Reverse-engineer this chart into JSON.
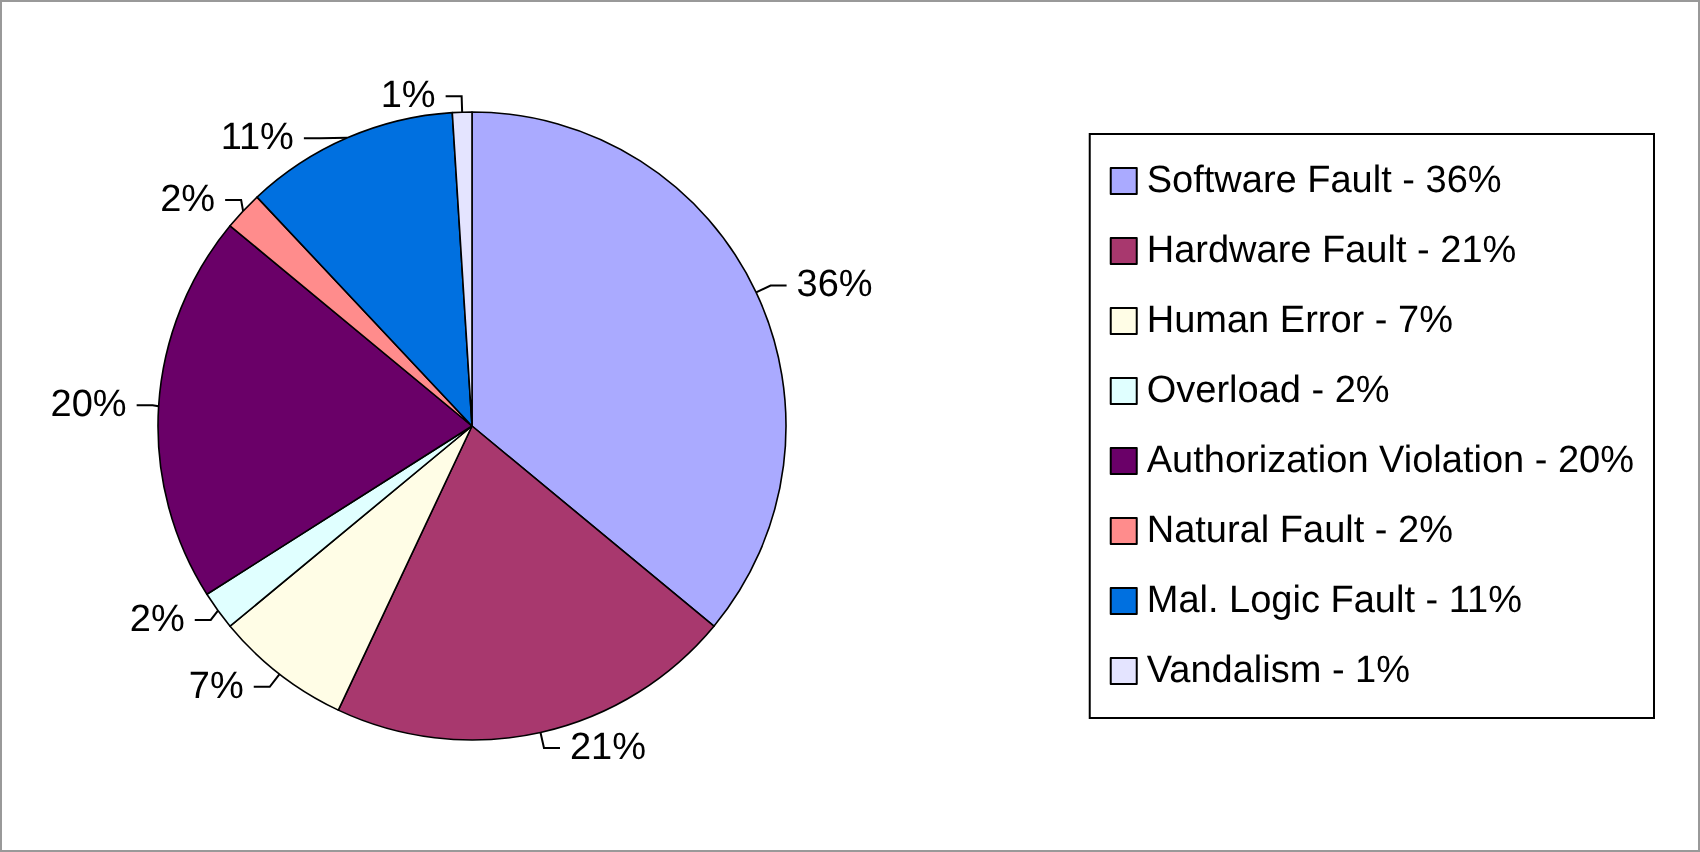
{
  "chart_data": {
    "type": "pie",
    "categories": [
      "Software Fault - 36%",
      "Hardware Fault - 21%",
      "Human Error - 7%",
      "Overload - 2%",
      "Authorization Violation - 20%",
      "Natural Fault - 2%",
      "Mal. Logic Fault - 11%",
      "Vandalism - 1%"
    ],
    "values": [
      36,
      21,
      7,
      2,
      20,
      2,
      11,
      1
    ],
    "colors": [
      "#aaaaff",
      "#a8386e",
      "#fffde6",
      "#e0ffff",
      "#6a0068",
      "#ff8c8c",
      "#0070e0",
      "#e4e4ff"
    ],
    "value_labels": [
      "36%",
      "21%",
      "7%",
      "2%",
      "20%",
      "2%",
      "11%",
      "1%"
    ],
    "legend": "right"
  }
}
